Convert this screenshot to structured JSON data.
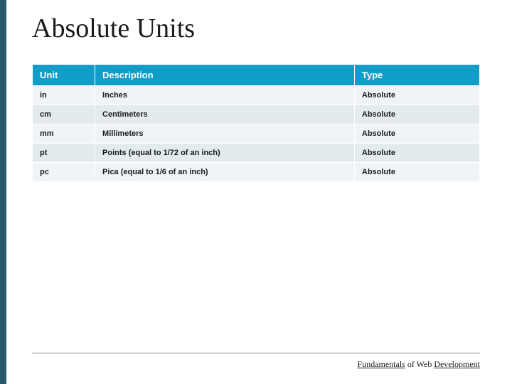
{
  "slide": {
    "title": "Absolute Units",
    "accent_color": "#2a5a6a"
  },
  "table": {
    "type": "table",
    "header_bg_color": "#129dc9",
    "header_text_color": "#ffffff",
    "row_odd_bg": "#f0f4f6",
    "row_even_bg": "#e3ebee",
    "header_fontsize": 13,
    "cell_fontsize": 11,
    "columns": [
      {
        "key": "unit",
        "label": "Unit",
        "width_pct": 14
      },
      {
        "key": "description",
        "label": "Description",
        "width_pct": 58
      },
      {
        "key": "type",
        "label": "Type",
        "width_pct": 28
      }
    ],
    "rows": [
      {
        "unit": "in",
        "description": "Inches",
        "type": "Absolute"
      },
      {
        "unit": "cm",
        "description": "Centimeters",
        "type": "Absolute"
      },
      {
        "unit": "mm",
        "description": "Millimeters",
        "type": "Absolute"
      },
      {
        "unit": "pt",
        "description": "Points (equal to 1/72 of an inch)",
        "type": "Absolute"
      },
      {
        "unit": "pc",
        "description": "Pica (equal to 1/6 of an inch)",
        "type": "Absolute"
      }
    ]
  },
  "footer": {
    "text_underlined_1": "Fundamentals",
    "text_plain": " of Web ",
    "text_underlined_2": "Development"
  }
}
